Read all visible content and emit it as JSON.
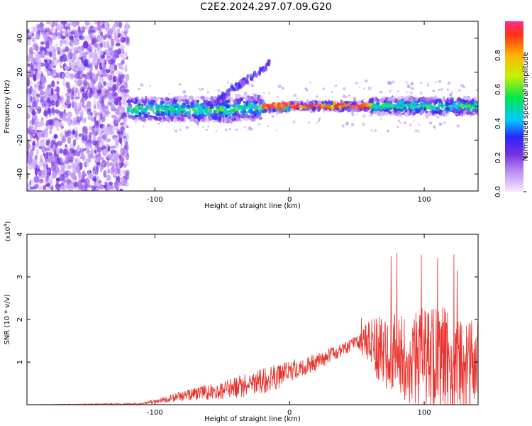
{
  "title": "C2E2.2024.297.07.09.G20",
  "chart_data": [
    {
      "type": "heatmap",
      "title": "",
      "xlabel": "Height of straight line (km)",
      "ylabel": "Frequency (Hz)",
      "xlim": [
        -195,
        140
      ],
      "ylim": [
        -50,
        50
      ],
      "xticks": [
        -100,
        0,
        100
      ],
      "yticks": [
        -40,
        -20,
        0,
        20,
        40
      ],
      "colorbar": {
        "label": "Normalized spectral amplitude",
        "range": [
          0,
          1
        ],
        "ticks": [
          "0.0",
          "0.2",
          "0.4",
          "0.6",
          "0.8"
        ]
      },
      "features": {
        "noise_region_x": [
          -195,
          -120
        ],
        "ridge_x": [
          -120,
          140
        ],
        "ridge_frequency_hz": 0,
        "peak_amplitude_x": [
          -20,
          60
        ]
      }
    },
    {
      "type": "line",
      "title": "",
      "xlabel": "Height of straight line (km)",
      "ylabel": "SNR (10 * v/v)",
      "y_multiplier": "(x10^4)",
      "xlim": [
        -195,
        140
      ],
      "ylim": [
        0,
        4
      ],
      "xticks": [
        -100,
        0,
        100
      ],
      "yticks": [
        1,
        2,
        3,
        4
      ],
      "series": [
        {
          "color": "#e8322d",
          "envelope": {
            "x": [
              -195,
              -110,
              -100,
              -80,
              -60,
              -40,
              -20,
              -10,
              0,
              20,
              40,
              50,
              60,
              70,
              80,
              90,
              100,
              110,
              120,
              130,
              140
            ],
            "mean": [
              0.0,
              0.02,
              0.08,
              0.2,
              0.3,
              0.4,
              0.55,
              0.65,
              0.8,
              1.0,
              1.3,
              1.5,
              1.45,
              1.2,
              1.2,
              1.1,
              1.1,
              1.05,
              1.0,
              1.0,
              0.95
            ],
            "spread": [
              0.0,
              0.02,
              0.05,
              0.12,
              0.18,
              0.25,
              0.3,
              0.3,
              0.25,
              0.2,
              0.15,
              0.15,
              0.6,
              0.9,
              1.0,
              1.1,
              1.2,
              1.3,
              1.2,
              1.1,
              1.0
            ]
          },
          "max_value": 4.0
        }
      ]
    }
  ],
  "labels": {
    "top_xticks": [
      "-100",
      "0",
      "100"
    ],
    "top_yticks": [
      "-40",
      "-20",
      "0",
      "20",
      "40"
    ],
    "bottom_xticks": [
      "-100",
      "0",
      "100"
    ],
    "bottom_yticks": [
      "1",
      "2",
      "3",
      "4"
    ]
  }
}
